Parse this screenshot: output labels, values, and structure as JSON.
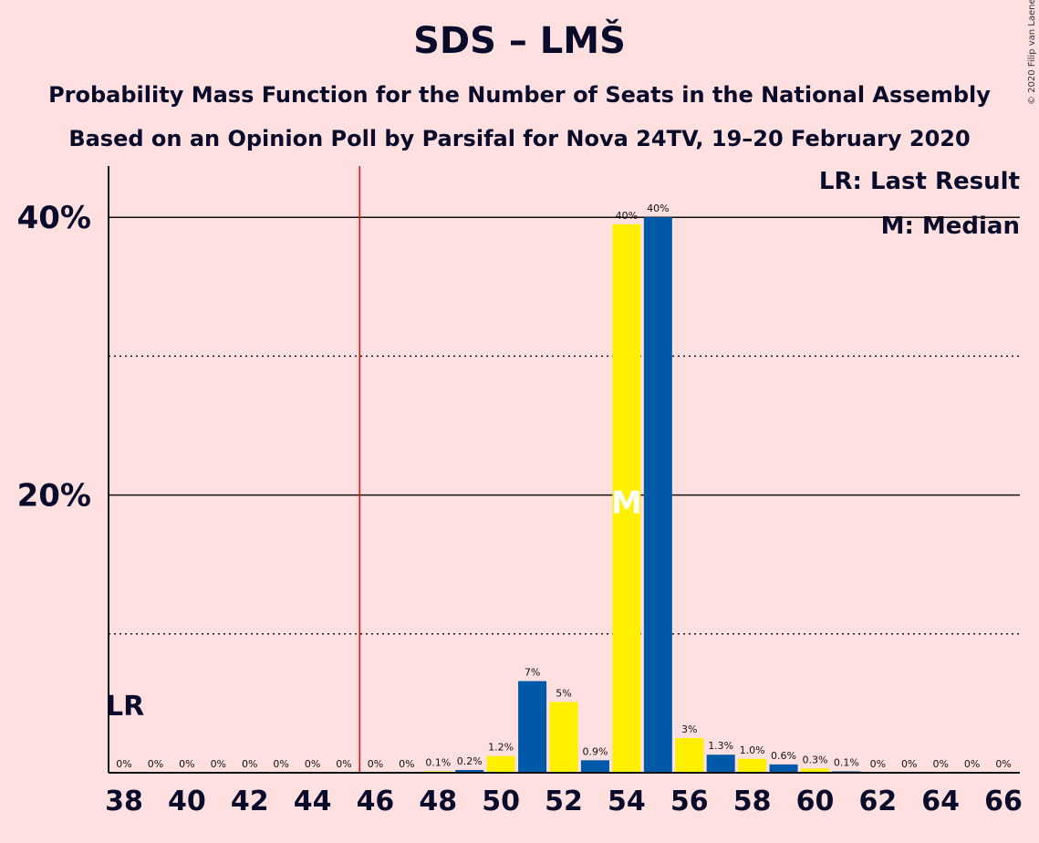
{
  "title": "SDS – LMŠ",
  "subtitle1": "Probability Mass Function for the Number of Seats in the National Assembly",
  "subtitle2": "Based on an Opinion Poll by Parsifal for Nova 24TV, 19–20 February 2020",
  "copyright": "© 2020 Filip van Laenen",
  "legend": {
    "last_result": "LR: Last Result",
    "median": "M: Median"
  },
  "chart_data": {
    "type": "bar",
    "x": [
      38,
      39,
      40,
      41,
      42,
      43,
      44,
      45,
      46,
      47,
      48,
      49,
      50,
      51,
      52,
      53,
      54,
      55,
      56,
      57,
      58,
      59,
      60,
      61,
      62,
      63,
      64,
      65,
      66
    ],
    "values": [
      0,
      0,
      0,
      0,
      0,
      0,
      0,
      0,
      0,
      0,
      0.1,
      0.2,
      1.2,
      6.6,
      5.1,
      0.9,
      39.5,
      40.0,
      2.5,
      1.3,
      1.0,
      0.6,
      0.3,
      0.1,
      0,
      0,
      0,
      0,
      0
    ],
    "labels": [
      "0%",
      "0%",
      "0%",
      "0%",
      "0%",
      "0%",
      "0%",
      "0%",
      "0%",
      "0%",
      "0.1%",
      "0.2%",
      "1.2%",
      "7%",
      "5%",
      "0.9%",
      "40%",
      "40%",
      "3%",
      "1.3%",
      "1.0%",
      "0.6%",
      "0.3%",
      "0.1%",
      "0%",
      "0%",
      "0%",
      "0%",
      "0%"
    ],
    "xticks": [
      "38",
      "40",
      "42",
      "44",
      "46",
      "48",
      "50",
      "52",
      "54",
      "56",
      "58",
      "60",
      "62",
      "64",
      "66"
    ],
    "yticks": [
      "20%",
      "40%"
    ],
    "ylim": [
      0,
      42
    ],
    "majority_threshold": 45.5,
    "last_result": 38,
    "last_result_label": "LR",
    "median": 54,
    "median_label": "M",
    "colors": {
      "even": "#FFF000",
      "odd": "#0058A8",
      "majority_line": "#FF0000",
      "background": "#FFE0E0"
    }
  }
}
